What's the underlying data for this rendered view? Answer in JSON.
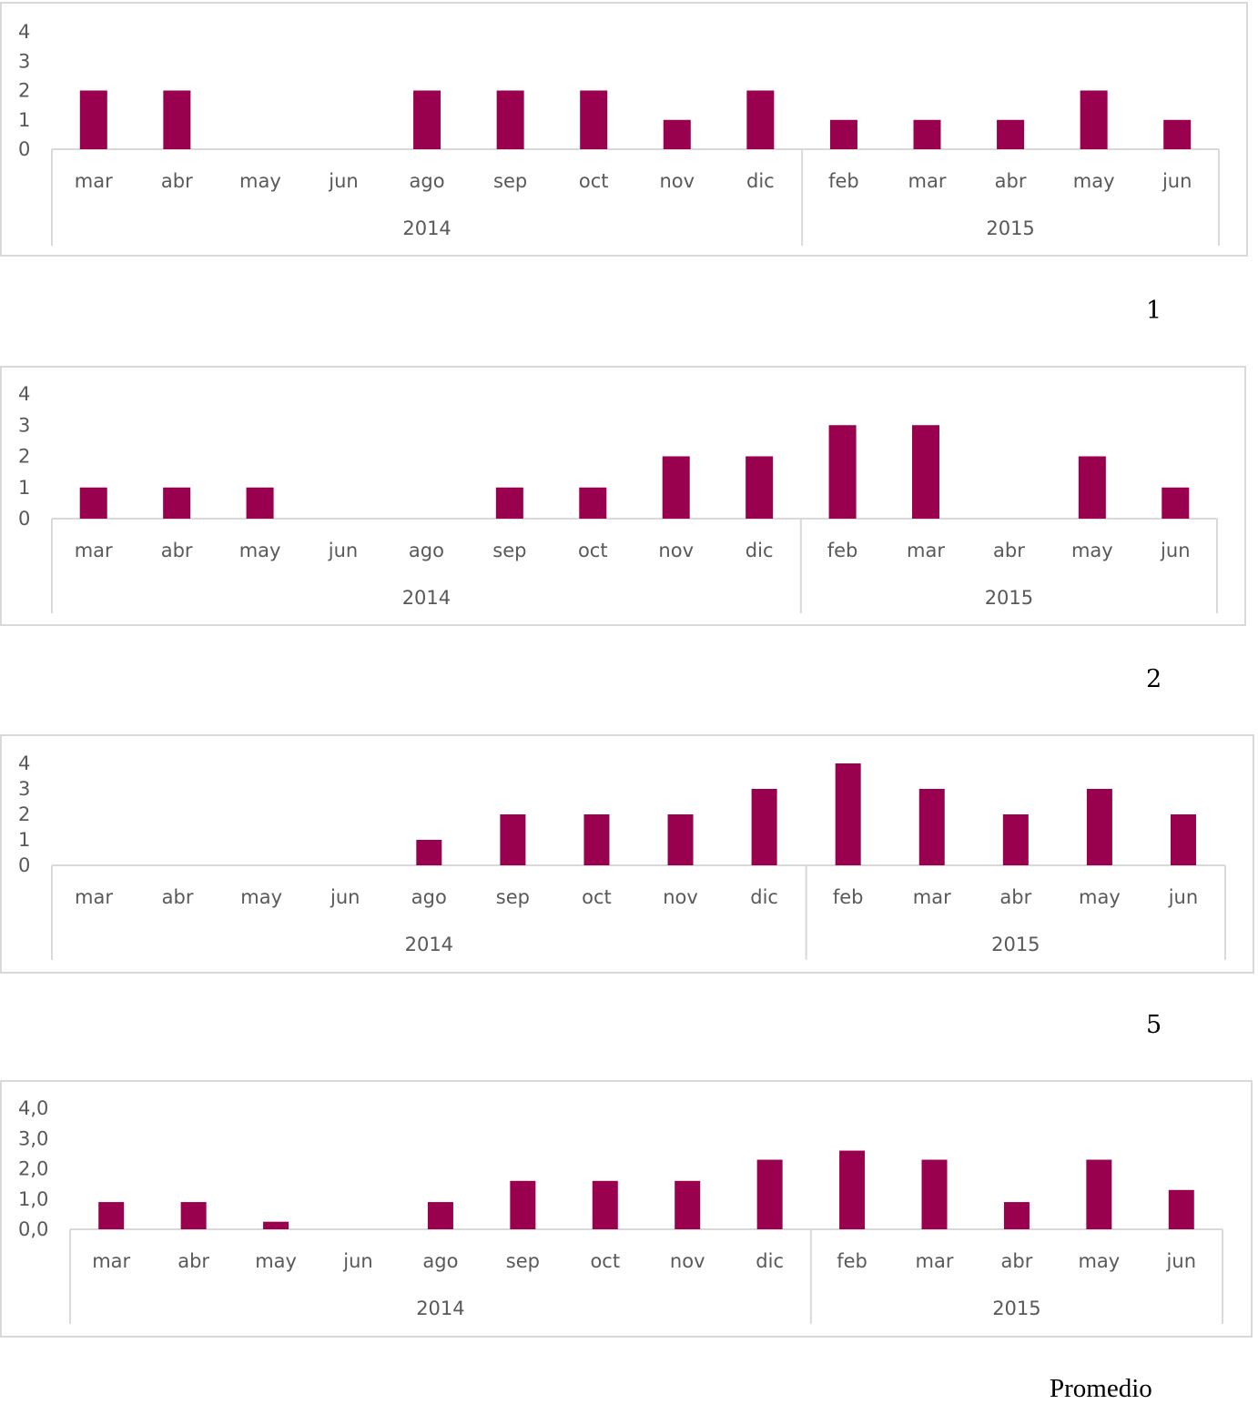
{
  "colors": {
    "bar": "#99004d",
    "axis": "#d9d9d9",
    "text": "#595959",
    "frame": "#d9d9d9"
  },
  "captions": [
    "1",
    "2",
    "5",
    "Promedio"
  ],
  "chart_data": [
    {
      "type": "bar",
      "categories": [
        "mar",
        "abr",
        "may",
        "jun",
        "ago",
        "sep",
        "oct",
        "nov",
        "dic",
        "feb",
        "mar",
        "abr",
        "may",
        "jun"
      ],
      "groups": [
        {
          "label": "2014",
          "count": 9
        },
        {
          "label": "2015",
          "count": 5
        }
      ],
      "values": [
        2,
        2,
        0,
        0,
        2,
        2,
        2,
        1,
        2,
        1,
        1,
        1,
        2,
        1
      ],
      "ylim": [
        0,
        4
      ],
      "yticks": [
        "0",
        "1",
        "2",
        "3",
        "4"
      ],
      "grid": false,
      "legend": "none"
    },
    {
      "type": "bar",
      "categories": [
        "mar",
        "abr",
        "may",
        "jun",
        "ago",
        "sep",
        "oct",
        "nov",
        "dic",
        "feb",
        "mar",
        "abr",
        "may",
        "jun"
      ],
      "groups": [
        {
          "label": "2014",
          "count": 9
        },
        {
          "label": "2015",
          "count": 5
        }
      ],
      "values": [
        1,
        1,
        1,
        0,
        0,
        1,
        1,
        2,
        2,
        3,
        3,
        0,
        2,
        1
      ],
      "ylim": [
        0,
        4
      ],
      "yticks": [
        "0",
        "1",
        "2",
        "3",
        "4"
      ],
      "grid": false,
      "legend": "none"
    },
    {
      "type": "bar",
      "categories": [
        "mar",
        "abr",
        "may",
        "jun",
        "ago",
        "sep",
        "oct",
        "nov",
        "dic",
        "feb",
        "mar",
        "abr",
        "may",
        "jun"
      ],
      "groups": [
        {
          "label": "2014",
          "count": 9
        },
        {
          "label": "2015",
          "count": 5
        }
      ],
      "values": [
        0,
        0,
        0,
        0,
        1,
        2,
        2,
        2,
        3,
        4,
        3,
        2,
        3,
        2
      ],
      "ylim": [
        0,
        4
      ],
      "yticks": [
        "0",
        "1",
        "2",
        "3",
        "4"
      ],
      "grid": false,
      "legend": "none"
    },
    {
      "type": "bar",
      "categories": [
        "mar",
        "abr",
        "may",
        "jun",
        "ago",
        "sep",
        "oct",
        "nov",
        "dic",
        "feb",
        "mar",
        "abr",
        "may",
        "jun"
      ],
      "groups": [
        {
          "label": "2014",
          "count": 9
        },
        {
          "label": "2015",
          "count": 5
        }
      ],
      "values": [
        0.9,
        0.9,
        0.25,
        0,
        0.9,
        1.6,
        1.6,
        1.6,
        2.3,
        2.6,
        2.3,
        0.9,
        2.3,
        1.3
      ],
      "ylim": [
        0,
        4
      ],
      "yticks": [
        "0,0",
        "1,0",
        "2,0",
        "3,0",
        "4,0"
      ],
      "grid": false,
      "legend": "none"
    }
  ]
}
